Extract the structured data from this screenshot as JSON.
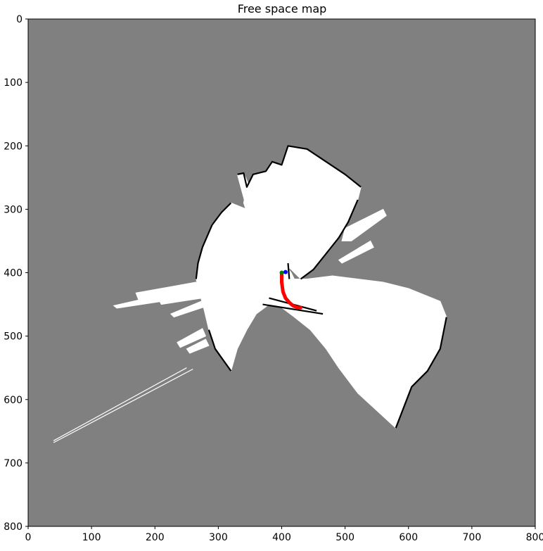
{
  "chart_data": {
    "type": "heatmap",
    "title": "Free space map",
    "xlabel": "",
    "ylabel": "",
    "xlim": [
      0,
      800
    ],
    "ylim": [
      800,
      0
    ],
    "x_ticks": [
      0,
      100,
      200,
      300,
      400,
      500,
      600,
      700,
      800
    ],
    "y_ticks": [
      0,
      100,
      200,
      300,
      400,
      500,
      600,
      700,
      800
    ],
    "grid": false,
    "colors": {
      "unknown": "#808080",
      "free": "#ffffff",
      "occupied": "#000000",
      "path": "#ff0000",
      "start_marker": "#008000",
      "goal_marker": "#0000ff"
    },
    "free_regions": [
      [
        [
          400,
          230
        ],
        [
          410,
          200
        ],
        [
          440,
          205
        ],
        [
          470,
          225
        ],
        [
          500,
          245
        ],
        [
          525,
          265
        ],
        [
          520,
          285
        ],
        [
          505,
          320
        ],
        [
          490,
          345
        ],
        [
          470,
          370
        ],
        [
          450,
          395
        ],
        [
          430,
          410
        ],
        [
          415,
          395
        ],
        [
          400,
          385
        ],
        [
          390,
          370
        ],
        [
          370,
          350
        ],
        [
          350,
          320
        ],
        [
          340,
          290
        ],
        [
          345,
          265
        ],
        [
          355,
          245
        ],
        [
          375,
          240
        ],
        [
          385,
          225
        ]
      ],
      [
        [
          330,
          245
        ],
        [
          340,
          243
        ],
        [
          365,
          300
        ],
        [
          360,
          310
        ],
        [
          345,
          300
        ]
      ],
      [
        [
          500,
          330
        ],
        [
          560,
          300
        ],
        [
          565,
          310
        ],
        [
          510,
          350
        ],
        [
          495,
          350
        ]
      ],
      [
        [
          490,
          380
        ],
        [
          540,
          350
        ],
        [
          545,
          360
        ],
        [
          495,
          385
        ]
      ],
      [
        [
          320,
          290
        ],
        [
          345,
          300
        ],
        [
          360,
          330
        ],
        [
          380,
          355
        ],
        [
          400,
          380
        ],
        [
          415,
          400
        ],
        [
          420,
          410
        ],
        [
          440,
          410
        ],
        [
          480,
          405
        ],
        [
          520,
          410
        ],
        [
          560,
          415
        ],
        [
          600,
          425
        ],
        [
          650,
          445
        ],
        [
          660,
          470
        ],
        [
          650,
          520
        ],
        [
          630,
          555
        ],
        [
          605,
          580
        ],
        [
          580,
          645
        ],
        [
          520,
          590
        ],
        [
          490,
          550
        ],
        [
          470,
          520
        ],
        [
          445,
          490
        ],
        [
          420,
          470
        ],
        [
          400,
          455
        ],
        [
          380,
          450
        ],
        [
          360,
          465
        ],
        [
          345,
          490
        ],
        [
          330,
          520
        ],
        [
          320,
          555
        ],
        [
          295,
          520
        ],
        [
          285,
          490
        ],
        [
          278,
          460
        ],
        [
          270,
          430
        ],
        [
          265,
          410
        ],
        [
          268,
          385
        ],
        [
          275,
          360
        ],
        [
          290,
          325
        ],
        [
          305,
          305
        ]
      ],
      [
        [
          170,
          432
        ],
        [
          265,
          415
        ],
        [
          270,
          430
        ],
        [
          175,
          445
        ]
      ],
      [
        [
          135,
          452
        ],
        [
          210,
          435
        ],
        [
          212,
          445
        ],
        [
          140,
          456
        ]
      ],
      [
        [
          205,
          440
        ],
        [
          270,
          425
        ],
        [
          275,
          440
        ],
        [
          210,
          450
        ]
      ],
      [
        [
          225,
          465
        ],
        [
          285,
          440
        ],
        [
          290,
          450
        ],
        [
          230,
          470
        ]
      ],
      [
        [
          235,
          510
        ],
        [
          275,
          488
        ],
        [
          280,
          500
        ],
        [
          240,
          518
        ]
      ],
      [
        [
          250,
          520
        ],
        [
          280,
          505
        ],
        [
          285,
          515
        ],
        [
          255,
          527
        ]
      ]
    ],
    "occupied_edges": [
      [
        [
          330,
          245
        ],
        [
          340,
          243
        ],
        [
          345,
          265
        ],
        [
          355,
          245
        ],
        [
          375,
          240
        ],
        [
          385,
          225
        ],
        [
          400,
          230
        ],
        [
          410,
          200
        ],
        [
          440,
          205
        ],
        [
          470,
          225
        ],
        [
          500,
          245
        ],
        [
          525,
          265
        ]
      ],
      [
        [
          290,
          325
        ],
        [
          305,
          305
        ],
        [
          320,
          290
        ]
      ],
      [
        [
          265,
          410
        ],
        [
          268,
          385
        ],
        [
          275,
          360
        ],
        [
          290,
          325
        ]
      ],
      [
        [
          320,
          555
        ],
        [
          295,
          520
        ],
        [
          285,
          490
        ]
      ],
      [
        [
          660,
          470
        ],
        [
          650,
          520
        ],
        [
          630,
          555
        ],
        [
          605,
          580
        ],
        [
          580,
          645
        ]
      ],
      [
        [
          430,
          410
        ],
        [
          450,
          395
        ],
        [
          470,
          370
        ],
        [
          490,
          345
        ],
        [
          505,
          320
        ],
        [
          520,
          285
        ]
      ],
      [
        [
          370,
          450
        ],
        [
          465,
          465
        ]
      ],
      [
        [
          380,
          440
        ],
        [
          455,
          460
        ]
      ],
      [
        [
          410,
          385
        ],
        [
          412,
          410
        ]
      ]
    ],
    "free_lines": [
      [
        [
          40,
          665
        ],
        [
          250,
          550
        ]
      ],
      [
        [
          40,
          668
        ],
        [
          260,
          552
        ]
      ]
    ],
    "path": {
      "x": [
        400,
        400,
        402,
        406,
        412,
        418,
        425,
        430
      ],
      "y": [
        400,
        415,
        430,
        440,
        447,
        452,
        455,
        455
      ]
    },
    "start": {
      "x": 400,
      "y": 400
    },
    "goal": {
      "x": 406,
      "y": 399
    }
  }
}
